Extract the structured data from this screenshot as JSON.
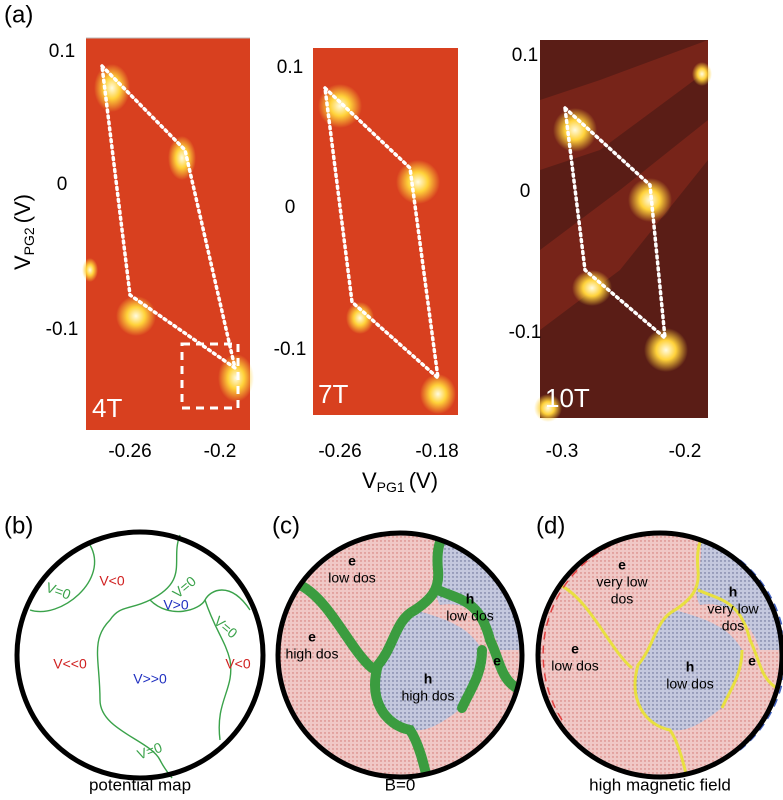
{
  "panel_a": {
    "tag": "(a)",
    "y_label": {
      "main": "V",
      "sub": "PG2",
      "unit": "(V)"
    },
    "x_label": {
      "main": "V",
      "sub": "PG1",
      "unit": "(V)"
    },
    "maps": [
      {
        "field": "4T",
        "yticks": [
          "0.1",
          "0",
          "-0.1"
        ],
        "xticks": [
          "-0.26",
          "-0.2"
        ]
      },
      {
        "field": "7T",
        "yticks": [
          "0.1",
          "0",
          "-0.1"
        ],
        "xticks": [
          "-0.26",
          "-0.18"
        ]
      },
      {
        "field": "10T",
        "yticks": [
          "0.1",
          "0",
          "-0.1"
        ],
        "xticks": [
          "-0.3",
          "-0.2"
        ]
      }
    ]
  },
  "panel_b": {
    "tag": "(b)",
    "caption": "potential map",
    "regions": [
      "V<0",
      "V>0",
      "V<<0",
      "V>>0",
      "V<0"
    ],
    "boundaries": [
      "V=0",
      "V=0",
      "V=0",
      "V=0"
    ]
  },
  "panel_c": {
    "tag": "(c)",
    "caption": "B=0",
    "regions": [
      [
        "e",
        "low dos"
      ],
      [
        "h",
        "low dos"
      ],
      [
        "e",
        "high dos"
      ],
      [
        "h",
        "high dos"
      ],
      [
        "e"
      ]
    ]
  },
  "panel_d": {
    "tag": "(d)",
    "caption": "high magnetic field",
    "regions": [
      [
        "e",
        "very low",
        "dos"
      ],
      [
        "h",
        "very low",
        "dos"
      ],
      [
        "e",
        "low dos"
      ],
      [
        "h",
        "low dos"
      ],
      [
        "e"
      ]
    ]
  }
}
